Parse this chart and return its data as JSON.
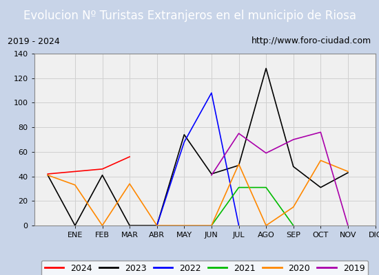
{
  "title": "Evolucion Nº Turistas Extranjeros en el municipio de Riosa",
  "subtitle_left": "2019 - 2024",
  "subtitle_right": "http://www.foro-ciudad.com",
  "months": [
    "ENE",
    "FEB",
    "MAR",
    "ABR",
    "MAY",
    "JUN",
    "JUL",
    "AGO",
    "SEP",
    "OCT",
    "NOV",
    "DIC"
  ],
  "ylim": [
    0,
    140
  ],
  "yticks": [
    0,
    20,
    40,
    60,
    80,
    100,
    120,
    140
  ],
  "series": {
    "2024": {
      "color": "#ff0000",
      "values": [
        42,
        44,
        46,
        56,
        null,
        null,
        null,
        null,
        null,
        null,
        null,
        null
      ]
    },
    "2023": {
      "color": "#000000",
      "values": [
        41,
        0,
        41,
        0,
        0,
        74,
        42,
        49,
        128,
        48,
        31,
        43
      ]
    },
    "2022": {
      "color": "#0000ff",
      "values": [
        null,
        null,
        null,
        null,
        0,
        68,
        108,
        0,
        null,
        null,
        null,
        null
      ]
    },
    "2021": {
      "color": "#00bb00",
      "values": [
        null,
        null,
        null,
        null,
        null,
        null,
        0,
        31,
        31,
        0,
        null,
        null
      ]
    },
    "2020": {
      "color": "#ff8800",
      "values": [
        41,
        33,
        0,
        34,
        0,
        null,
        0,
        50,
        0,
        15,
        53,
        44
      ]
    },
    "2019": {
      "color": "#aa00aa",
      "values": [
        null,
        null,
        null,
        null,
        null,
        null,
        41,
        75,
        59,
        70,
        76,
        0
      ]
    }
  },
  "title_bg_color": "#4a7fc1",
  "title_text_color": "#ffffff",
  "plot_bg_color": "#f0f0f0",
  "outer_bg_color": "#c8d4e8",
  "border_color": "#888888",
  "grid_color": "#d0d0d0",
  "box_color": "#ffffff",
  "title_fontsize": 12,
  "tick_fontsize": 8,
  "legend_fontsize": 9
}
